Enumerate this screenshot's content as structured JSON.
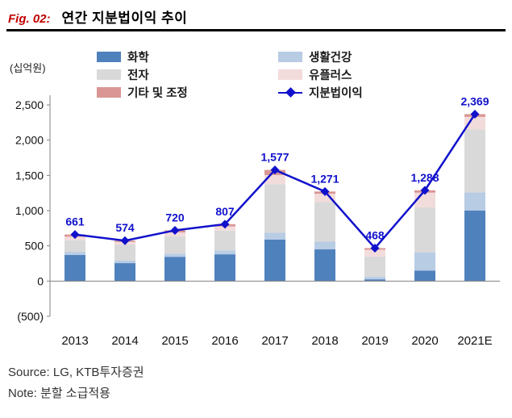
{
  "header": {
    "fig_label": "Fig. 02:",
    "title": "연간 지분법이익 추이"
  },
  "chart_data": {
    "type": "bar",
    "subtype": "stacked-bar-with-line",
    "unit_label": "(십억원)",
    "categories": [
      "2013",
      "2014",
      "2015",
      "2016",
      "2017",
      "2018",
      "2019",
      "2020",
      "2021E"
    ],
    "series": [
      {
        "name": "화학",
        "color": "#4f81bd",
        "values": [
          370,
          255,
          345,
          380,
          590,
          450,
          25,
          150,
          1000
        ]
      },
      {
        "name": "생활건강",
        "color": "#b8cce4",
        "values": [
          45,
          35,
          45,
          55,
          95,
          110,
          35,
          255,
          260
        ]
      },
      {
        "name": "전자",
        "color": "#d9d9d9",
        "values": [
          165,
          230,
          245,
          280,
          690,
          560,
          290,
          640,
          890
        ]
      },
      {
        "name": "유플러스",
        "color": "#f2dcdb",
        "values": [
          50,
          35,
          55,
          60,
          130,
          120,
          95,
          210,
          180
        ]
      },
      {
        "name": "기타 및 조정",
        "color": "#d99694",
        "values": [
          31,
          19,
          30,
          32,
          72,
          31,
          23,
          33,
          39
        ]
      }
    ],
    "line_series": {
      "name": "지분법이익",
      "color": "#1111cc",
      "values": [
        661,
        574,
        720,
        807,
        1577,
        1271,
        468,
        1288,
        2369
      ],
      "labels": [
        "661",
        "574",
        "720",
        "807",
        "1,577",
        "1,271",
        "468",
        "1,288",
        "2,369"
      ]
    },
    "ylim": [
      -500,
      2500
    ],
    "y_ticks": [
      2500,
      2000,
      1500,
      1000,
      500,
      0,
      -500
    ],
    "y_tick_labels": [
      "2,500",
      "2,000",
      "1,500",
      "1,000",
      "500",
      "0",
      "(500)"
    ],
    "grid": "off",
    "legend_position": "top"
  },
  "footer": {
    "source": "Source: LG, KTB투자증권",
    "note": "Note: 분할 소급적용"
  }
}
